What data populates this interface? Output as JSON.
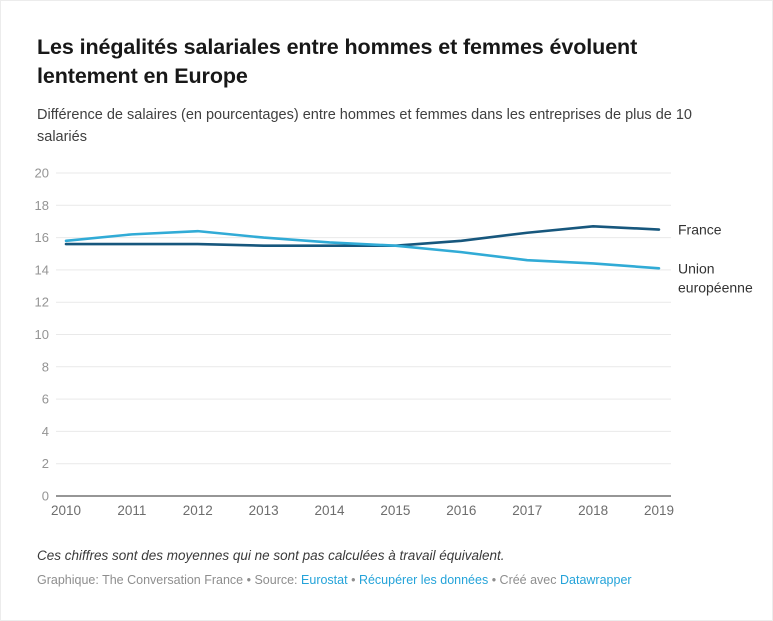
{
  "header": {
    "title": "Les inégalités salariales entre hommes et femmes évoluent lentement en Europe",
    "subtitle": "Différence de salaires (en pourcentages) entre hommes et femmes dans les entreprises de plus de 10 salariés"
  },
  "chart_data": {
    "type": "line",
    "x": [
      2010,
      2011,
      2012,
      2013,
      2014,
      2015,
      2016,
      2017,
      2018,
      2019
    ],
    "series": [
      {
        "name": "France",
        "label_lines": [
          "France"
        ],
        "color": "#17577d",
        "values": [
          15.6,
          15.6,
          15.6,
          15.5,
          15.5,
          15.5,
          15.8,
          16.3,
          16.7,
          16.5
        ]
      },
      {
        "name": "Union européenne",
        "label_lines": [
          "Union",
          "européenne"
        ],
        "color": "#31abd6",
        "values": [
          15.8,
          16.2,
          16.4,
          16.0,
          15.7,
          15.5,
          15.1,
          14.6,
          14.4,
          14.1
        ]
      }
    ],
    "ylim": [
      0,
      20
    ],
    "ytick_step": 2,
    "grid": true,
    "legend_position": "right of line ends",
    "title": "Les inégalités salariales entre hommes et femmes évoluent lentement en Europe",
    "xlabel": "",
    "ylabel": ""
  },
  "footer": {
    "note": "Ces chiffres sont des moyennes qui ne sont pas calculées à travail équivalent.",
    "credits": {
      "prefix": "Graphique: The Conversation France • Source:",
      "source_link": "Eurostat",
      "sep1": "•",
      "data_link": "Récupérer les données",
      "sep2": "• Créé avec",
      "tool_link": "Datawrapper"
    }
  },
  "colors": {
    "link": "#24a3d9",
    "grid_line": "#e9e9e9",
    "baseline": "#878787",
    "y_tick_label": "#949494",
    "x_tick_label": "#6d6d6d",
    "series_label": "#333333"
  }
}
